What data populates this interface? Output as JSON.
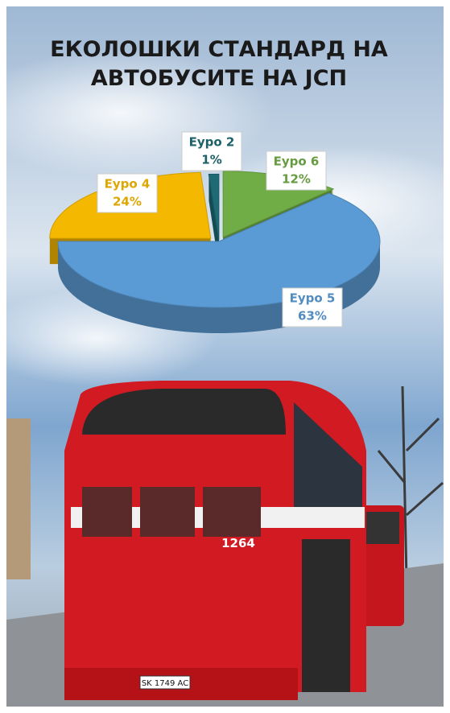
{
  "chart_data": {
    "type": "pie",
    "title": [
      "ЕКОЛОШКИ СТАНДАРД НА",
      "АВТОБУСИТЕ НА ЈСП"
    ],
    "categories": [
      "Еуро 6",
      "Еуро 5",
      "Еуро 4",
      "Еуро 2"
    ],
    "values": [
      12,
      63,
      24,
      1
    ],
    "value_labels": [
      "12%",
      "63%",
      "24%",
      "1%"
    ],
    "colors": [
      "#70ad47",
      "#5b9bd5",
      "#f5b800",
      "#1f6b75"
    ]
  },
  "bus_number": "1264",
  "plate": "SK 1749 AC"
}
